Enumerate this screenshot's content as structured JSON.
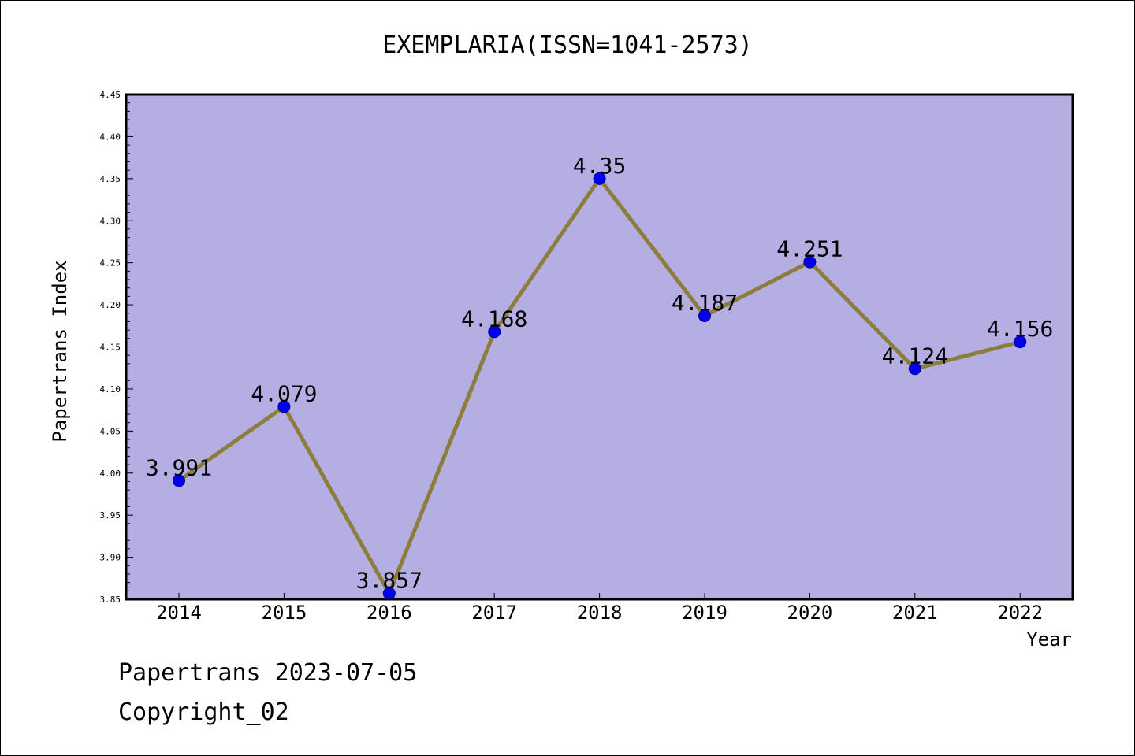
{
  "chart_data": {
    "type": "line",
    "title": "EXEMPLARIA(ISSN=1041-2573)",
    "xlabel": "Year",
    "ylabel": "Papertrans Index",
    "categories": [
      "2014",
      "2015",
      "2016",
      "2017",
      "2018",
      "2019",
      "2020",
      "2021",
      "2022"
    ],
    "values": [
      3.991,
      4.079,
      3.857,
      4.168,
      4.35,
      4.187,
      4.251,
      4.124,
      4.156
    ],
    "data_labels": [
      "3.991",
      "4.079",
      "3.857",
      "4.168",
      "4.35",
      "4.187",
      "4.251",
      "4.124",
      "4.156"
    ],
    "ylim": [
      3.85,
      4.45
    ],
    "yticks": [
      "3.85",
      "3.90",
      "3.95",
      "4.00",
      "4.05",
      "4.10",
      "4.15",
      "4.20",
      "4.25",
      "4.30",
      "4.35",
      "4.40",
      "4.45"
    ],
    "grid": false,
    "legend": "none",
    "colors": {
      "plot_background": "#b5aee2",
      "line": "#8c7d3c",
      "marker": "#0000ee",
      "marker_edge": "#000080"
    }
  },
  "footer": {
    "line1": "Papertrans 2023-07-05",
    "line2": "Copyright_02"
  }
}
